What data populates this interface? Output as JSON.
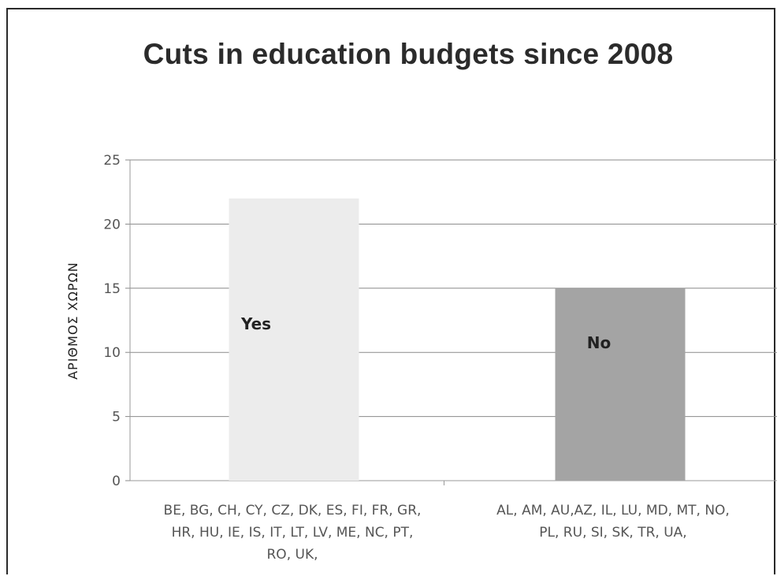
{
  "chart_data": {
    "type": "bar",
    "title": "Cuts in education budgets since 2008",
    "ylabel": "ΑΡΙΘΜΟΣ ΧΩΡΩΝ",
    "xlabel": "",
    "ylim": [
      0,
      25
    ],
    "yticks": [
      0,
      5,
      10,
      15,
      20,
      25
    ],
    "grid": true,
    "categories": [
      "BE, BG, CH, CY, CZ, DK, ES, FI, FR, GR, HR, HU, IE, IS, IT, LT, LV, ME, NC, PT, RO, UK,",
      "AL, AM, AU,AZ, IL, LU, MD, MT, NO, PL, RU, SI, SK, TR, UA,"
    ],
    "category_lines": [
      [
        "BE, BG, CH, CY, CZ, DK, ES, FI, FR, GR,",
        "HR, HU, IE, IS, IT, LT, LV, ME, NC, PT,",
        "RO, UK,"
      ],
      [
        "AL, AM, AU,AZ, IL, LU, MD, MT, NO,",
        "PL, RU, SI, SK, TR, UA,"
      ]
    ],
    "values": [
      22,
      15
    ],
    "bar_labels": [
      "Yes",
      "No"
    ],
    "bar_colors": [
      "#ececec",
      "#a4a4a4"
    ]
  }
}
